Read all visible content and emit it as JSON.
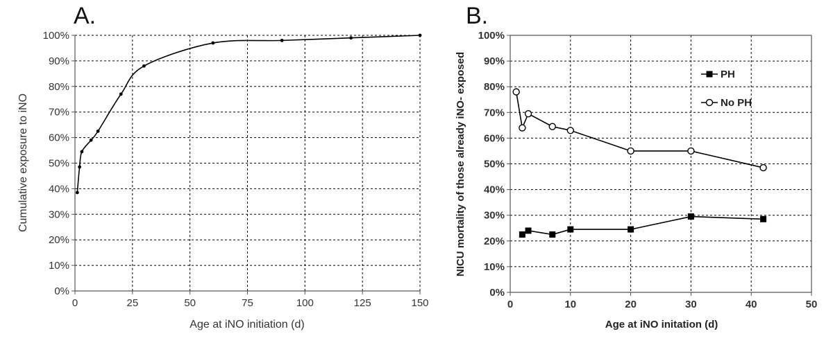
{
  "chart_data": [
    {
      "type": "line",
      "panel_label": "A.",
      "xlabel": "Age at iNO initiation (d)",
      "ylabel": "Cumulative exposure to iNO",
      "xlim": [
        0,
        150
      ],
      "ylim": [
        0,
        100
      ],
      "x_ticks": [
        "0",
        "25",
        "50",
        "75",
        "100",
        "125",
        "150"
      ],
      "y_ticks": [
        "0%",
        "10%",
        "20%",
        "30%",
        "40%",
        "50%",
        "60%",
        "70%",
        "80%",
        "90%",
        "100%"
      ],
      "grid": true,
      "series": [
        {
          "x": [
            1,
            2,
            3,
            7,
            10,
            20,
            30,
            60,
            90,
            120,
            150
          ],
          "y": [
            38.5,
            48.5,
            54.5,
            59,
            62.5,
            77,
            88,
            97,
            98,
            99,
            100
          ],
          "marker": "small-dot",
          "color": "#000000"
        }
      ]
    },
    {
      "type": "line",
      "panel_label": "B.",
      "xlabel": "Age at iNO initation (d)",
      "ylabel": "NICU mortality of those already iNO- exposed",
      "xlim": [
        0,
        50
      ],
      "ylim": [
        0,
        100
      ],
      "x_ticks": [
        "0",
        "10",
        "20",
        "30",
        "40",
        "50"
      ],
      "y_ticks": [
        "0%",
        "10%",
        "20%",
        "30%",
        "40%",
        "50%",
        "60%",
        "70%",
        "80%",
        "90%",
        "100%"
      ],
      "grid": true,
      "legend_position": "top-right",
      "series": [
        {
          "name": "PH",
          "x": [
            2,
            3,
            7,
            10,
            20,
            30,
            42
          ],
          "y": [
            22.5,
            24,
            22.5,
            24.5,
            24.5,
            29.5,
            28.5
          ],
          "marker": "filled-square",
          "color": "#000000"
        },
        {
          "name": "No PH",
          "x": [
            1,
            2,
            3,
            7,
            10,
            20,
            30,
            42
          ],
          "y": [
            78,
            64,
            69.5,
            64.5,
            63,
            55,
            55,
            48.5
          ],
          "marker": "open-circle",
          "color": "#000000"
        }
      ]
    }
  ]
}
